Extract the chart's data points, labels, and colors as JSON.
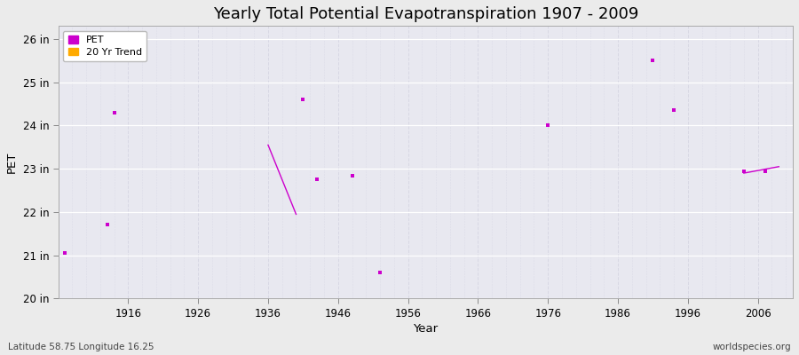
{
  "title": "Yearly Total Potential Evapotranspiration 1907 - 2009",
  "xlabel": "Year",
  "ylabel": "PET",
  "xlim": [
    1906,
    2011
  ],
  "ylim": [
    20,
    26.3
  ],
  "ytick_labels": [
    "20 in",
    "21 in",
    "22 in",
    "23 in",
    "24 in",
    "25 in",
    "26 in"
  ],
  "ytick_values": [
    20,
    21,
    22,
    23,
    24,
    25,
    26
  ],
  "xtick_values": [
    1916,
    1926,
    1936,
    1946,
    1956,
    1966,
    1976,
    1986,
    1996,
    2006
  ],
  "pet_points": [
    [
      1907,
      21.05
    ],
    [
      1913,
      21.72
    ],
    [
      1914,
      24.3
    ],
    [
      1941,
      24.6
    ],
    [
      1943,
      22.75
    ],
    [
      1948,
      22.85
    ],
    [
      1952,
      20.6
    ],
    [
      1976,
      24.0
    ],
    [
      1991,
      25.5
    ],
    [
      1994,
      24.35
    ],
    [
      2004,
      22.95
    ],
    [
      2007,
      22.95
    ]
  ],
  "trend_line": [
    [
      1936,
      23.55
    ],
    [
      1940,
      21.95
    ]
  ],
  "trend_line2": [
    [
      2004,
      22.9
    ],
    [
      2009,
      23.05
    ]
  ],
  "pet_color": "#cc00cc",
  "trend_color": "#ffaa00",
  "bg_color": "#ebebeb",
  "plot_bg_color": "#e8e8f0",
  "grid_color_h": "#d0d0d8",
  "grid_color_v": "#d8d8e4",
  "subtitle_left": "Latitude 58.75 Longitude 16.25",
  "subtitle_right": "worldspecies.org",
  "title_fontsize": 13,
  "marker_size": 3,
  "legend_marker_size": 6
}
